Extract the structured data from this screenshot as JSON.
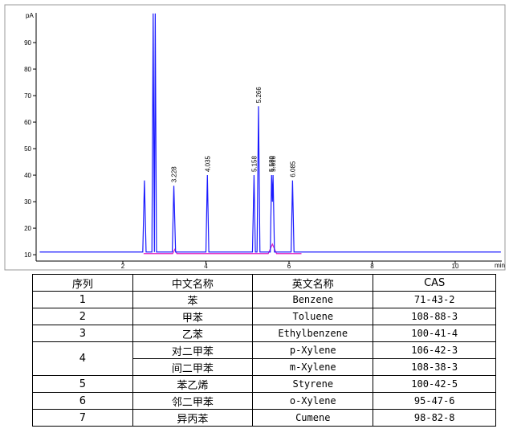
{
  "chart_data": {
    "type": "line",
    "x_label": "min",
    "y_label": "pA",
    "xlim": [
      0,
      11.1
    ],
    "xticks": [
      2,
      4,
      6,
      8,
      10
    ],
    "ylim": [
      7.6,
      101
    ],
    "yticks": [
      10,
      20,
      30,
      40,
      50,
      60,
      70,
      80,
      90
    ],
    "series": [
      {
        "color": "#1a1aff",
        "x": [
          0,
          2.48,
          2.52,
          2.56,
          2.7,
          2.73,
          2.76,
          2.78,
          2.81,
          3.19,
          3.228,
          3.27,
          4.0,
          4.035,
          4.07,
          5.12,
          5.158,
          5.19,
          5.23,
          5.266,
          5.3,
          5.55,
          5.58,
          5.6,
          5.616,
          5.65,
          6.05,
          6.085,
          6.12,
          11.1
        ],
        "values": [
          11,
          11,
          38,
          11,
          11,
          101,
          11,
          101,
          11,
          11,
          36,
          11,
          11,
          40,
          11,
          11,
          40,
          11,
          11,
          66,
          11,
          11,
          40,
          30,
          40,
          11,
          11,
          38,
          11,
          11
        ]
      },
      {
        "color": "#e020c0",
        "x": [
          2.5,
          3.2,
          3.25,
          3.3,
          5.5,
          5.6,
          5.7,
          6.3
        ],
        "values": [
          10.4,
          10.4,
          12,
          10.4,
          10.4,
          14,
          10.4,
          10.4
        ]
      }
    ],
    "annotations": [
      {
        "text": "3.228",
        "x": 3.228,
        "y": 36
      },
      {
        "text": "4.035",
        "x": 4.035,
        "y": 40
      },
      {
        "text": "5.158",
        "x": 5.158,
        "y": 40
      },
      {
        "text": "5.266",
        "x": 5.266,
        "y": 66
      },
      {
        "text": "5.580",
        "x": 5.58,
        "y": 40
      },
      {
        "text": "5.616",
        "x": 5.616,
        "y": 40
      },
      {
        "text": "6.085",
        "x": 6.085,
        "y": 38
      }
    ]
  },
  "table": {
    "header": [
      "序列",
      "中文名称",
      "英文名称",
      "CAS"
    ],
    "rows": [
      {
        "no": "1",
        "items": [
          [
            "苯",
            "Benzene",
            "71-43-2"
          ]
        ]
      },
      {
        "no": "2",
        "items": [
          [
            "甲苯",
            "Toluene",
            "108-88-3"
          ]
        ]
      },
      {
        "no": "3",
        "items": [
          [
            "乙苯",
            "Ethylbenzene",
            "100-41-4"
          ]
        ]
      },
      {
        "no": "4",
        "items": [
          [
            "对二甲苯",
            "p-Xylene",
            "106-42-3"
          ],
          [
            "间二甲苯",
            "m-Xylene",
            "108-38-3"
          ]
        ]
      },
      {
        "no": "5",
        "items": [
          [
            "苯乙烯",
            "Styrene",
            "100-42-5"
          ]
        ]
      },
      {
        "no": "6",
        "items": [
          [
            "邻二甲苯",
            "o-Xylene",
            "95-47-6"
          ]
        ]
      },
      {
        "no": "7",
        "items": [
          [
            "异丙苯",
            "Cumene",
            "98-82-8"
          ]
        ]
      }
    ]
  }
}
